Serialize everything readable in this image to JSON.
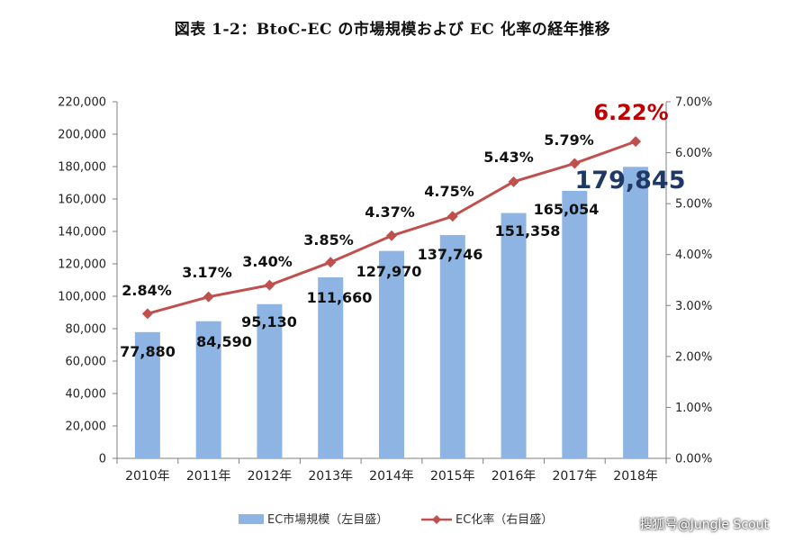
{
  "title": "図表 1-2：BtoC-EC の市場規模および EC 化率の経年推移",
  "watermark": "搜狐号@Jungle Scout",
  "chart_data": {
    "type": "bar",
    "title": "図表 1-2：BtoC-EC の市場規模および EC 化率の経年推移",
    "categories": [
      "2010年",
      "2011年",
      "2012年",
      "2013年",
      "2014年",
      "2015年",
      "2016年",
      "2017年",
      "2018年"
    ],
    "series": [
      {
        "name": "EC市場規模（左目盛）",
        "type": "bar",
        "axis": "left",
        "values": [
          77880,
          84590,
          95130,
          111660,
          127970,
          137746,
          151358,
          165054,
          179845
        ],
        "labels": [
          "77,880",
          "84,590",
          "95,130",
          "111,660",
          "127,970",
          "137,746",
          "151,358",
          "165,054",
          "179,845"
        ],
        "color": "#8DB4E2"
      },
      {
        "name": "EC化率（右目盛）",
        "type": "line",
        "axis": "right",
        "values": [
          2.84,
          3.17,
          3.4,
          3.85,
          4.37,
          4.75,
          5.43,
          5.79,
          6.22
        ],
        "labels": [
          "2.84%",
          "3.17%",
          "3.40%",
          "3.85%",
          "4.37%",
          "4.75%",
          "5.43%",
          "5.79%",
          "6.22%"
        ],
        "color": "#C0504D"
      }
    ],
    "y_left": {
      "range": [
        0,
        220000
      ],
      "ticks": [
        "0",
        "20,000",
        "40,000",
        "60,000",
        "80,000",
        "100,000",
        "120,000",
        "140,000",
        "160,000",
        "180,000",
        "200,000",
        "220,000"
      ]
    },
    "y_right": {
      "range": [
        0,
        7
      ],
      "ticks": [
        "0.00%",
        "1.00%",
        "2.00%",
        "3.00%",
        "4.00%",
        "5.00%",
        "6.00%",
        "7.00%"
      ]
    },
    "grid": false,
    "legend": "bottom",
    "highlight": {
      "bar_label_color": "#1F3864",
      "line_label_color": "#C00000"
    }
  }
}
